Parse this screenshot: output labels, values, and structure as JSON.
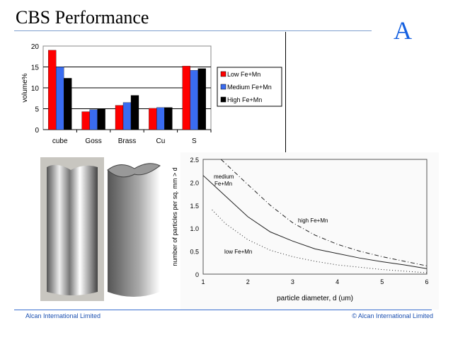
{
  "slide": {
    "title": "CBS Performance",
    "letter": "A",
    "footer_left": "Alcan International Limited",
    "footer_right": "© Alcan International Limited"
  },
  "chart_data": [
    {
      "type": "bar",
      "title": "",
      "xlabel": "",
      "ylabel": "volume%",
      "ylim": [
        0,
        20
      ],
      "yticks": [
        "0",
        "5",
        "10",
        "15",
        "20"
      ],
      "categories": [
        "cube",
        "Goss",
        "Brass",
        "Cu",
        "S"
      ],
      "series": [
        {
          "name": "Low Fe+Mn",
          "color": "#ff0000",
          "values": [
            19,
            4.3,
            5.8,
            5.1,
            15.2
          ]
        },
        {
          "name": "Medium Fe+Mn",
          "color": "#3a6cf0",
          "values": [
            15,
            4.8,
            6.5,
            5.3,
            14.2
          ]
        },
        {
          "name": "High Fe+Mn",
          "color": "#000000",
          "values": [
            12.3,
            5,
            8.2,
            5.3,
            14.6
          ]
        }
      ],
      "legend": "right"
    },
    {
      "type": "line",
      "xlabel": "particle diameter, d (um)",
      "ylabel": "number of particles per sq. mm > d",
      "xlim": [
        1,
        6
      ],
      "ylim": [
        0,
        2.5
      ],
      "xticks": [
        "1",
        "2",
        "3",
        "4",
        "5",
        "6"
      ],
      "yticks": [
        "0",
        "0.5",
        "1.0",
        "1.5",
        "2.0",
        "2.5"
      ],
      "series": [
        {
          "name": "medium Fe+Mn",
          "label_lines": [
            "medium",
            "Fe+Mn"
          ],
          "style": "solid",
          "x": [
            1,
            1.5,
            2,
            2.5,
            3,
            3.5,
            4,
            4.5,
            5,
            5.5,
            6
          ],
          "y": [
            2.15,
            1.7,
            1.25,
            0.92,
            0.72,
            0.55,
            0.45,
            0.35,
            0.27,
            0.2,
            0.12
          ]
        },
        {
          "name": "high Fe+Mn",
          "style": "dashdot",
          "x": [
            1.4,
            2,
            2.5,
            3,
            3.5,
            4,
            4.5,
            5,
            5.5,
            6
          ],
          "y": [
            2.5,
            1.95,
            1.5,
            1.12,
            0.85,
            0.65,
            0.5,
            0.38,
            0.28,
            0.18
          ]
        },
        {
          "name": "low Fe+Mn",
          "style": "dotted",
          "x": [
            1.2,
            1.5,
            2,
            2.5,
            3,
            3.5,
            4,
            5,
            6
          ],
          "y": [
            1.4,
            1.1,
            0.75,
            0.52,
            0.38,
            0.28,
            0.2,
            0.1,
            0.03
          ]
        }
      ]
    }
  ]
}
